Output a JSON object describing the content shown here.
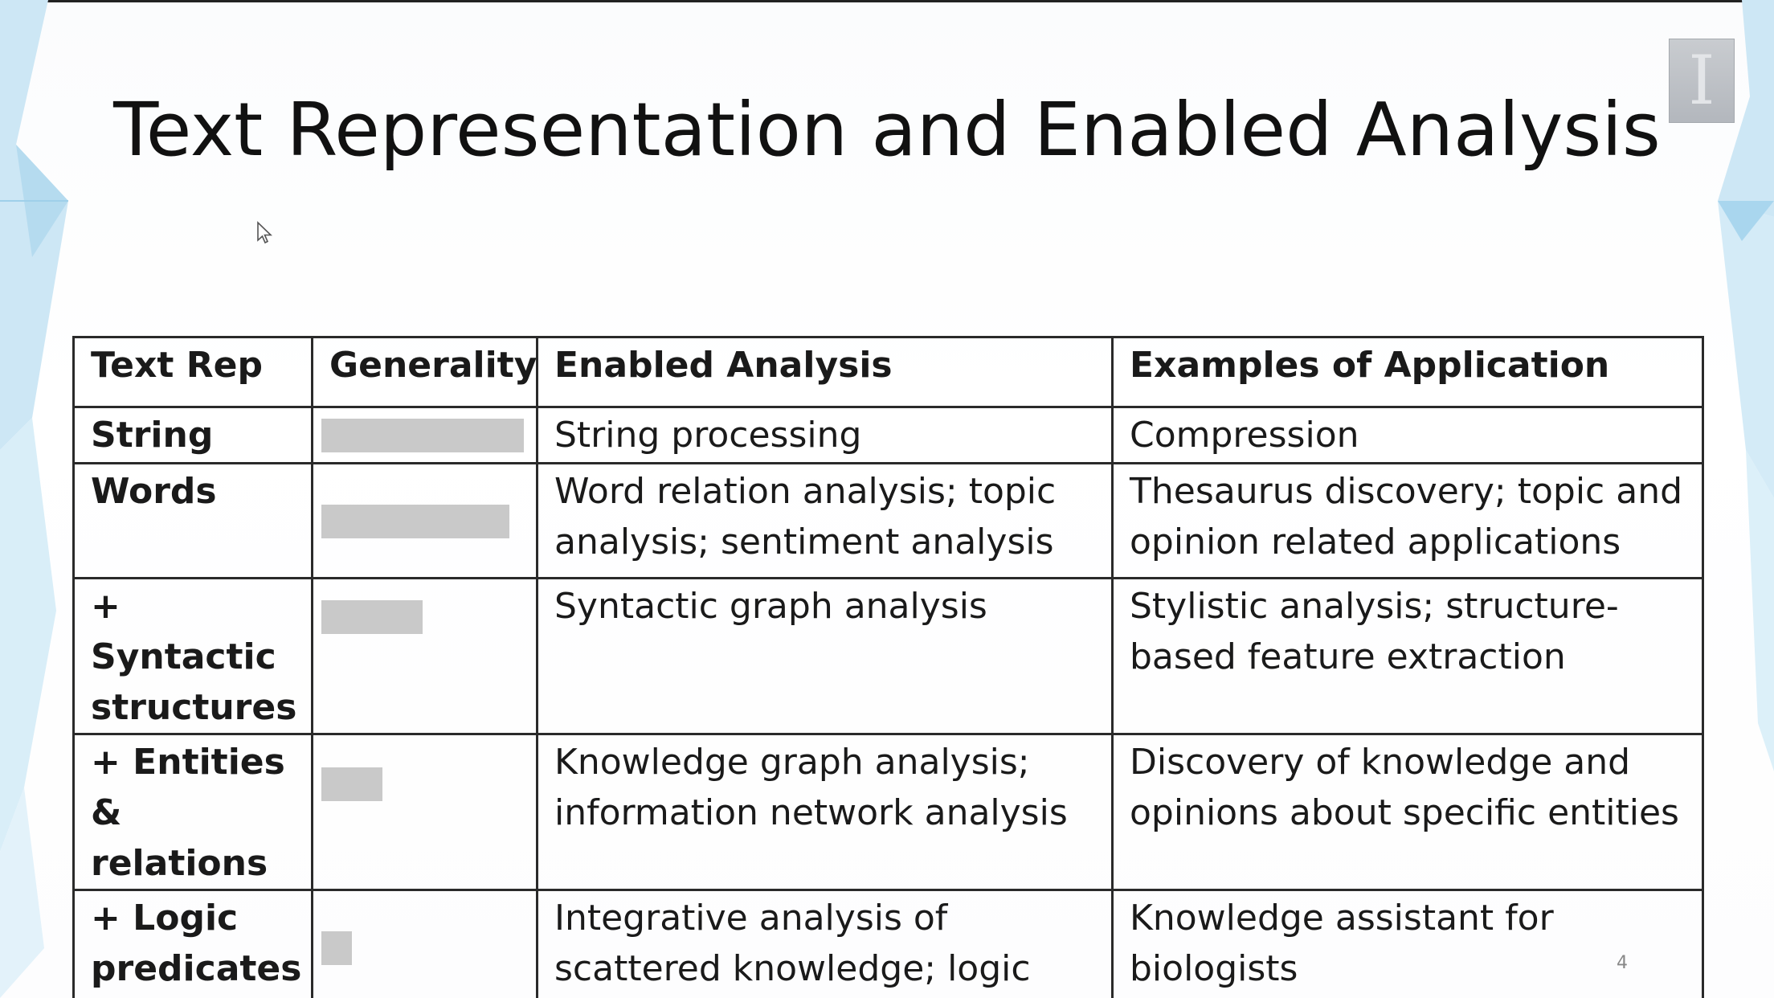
{
  "slide": {
    "title": "Text Representation and Enabled Analysis",
    "logo_letter": "I",
    "page_number": "4"
  },
  "table": {
    "headers": [
      "Text Rep",
      "Generality",
      "Enabled Analysis",
      "Examples of Application"
    ],
    "rows": [
      {
        "rep": "String",
        "generality": 1.0,
        "analysis": "String processing",
        "application": "Compression"
      },
      {
        "rep": "Words",
        "generality": 0.93,
        "analysis": "Word relation analysis; topic analysis; sentiment analysis",
        "application": "Thesaurus discovery; topic and opinion related applications"
      },
      {
        "rep": "+ Syntactic structures",
        "generality": 0.5,
        "analysis": "Syntactic  graph analysis",
        "application": "Stylistic analysis; structure-based feature extraction"
      },
      {
        "rep": "+ Entities & relations",
        "generality": 0.3,
        "analysis": "Knowledge graph analysis; information network analysis",
        "application": "Discovery of knowledge and opinions about specific entities"
      },
      {
        "rep": "+ Logic predicates",
        "generality": 0.15,
        "analysis": "Integrative analysis of scattered knowledge; logic inference",
        "application": "Knowledge assistant for biologists"
      }
    ]
  },
  "colors": {
    "bar": "#c9c9c9",
    "crystal": "#bfe0f2",
    "text": "#1a1a1a"
  }
}
